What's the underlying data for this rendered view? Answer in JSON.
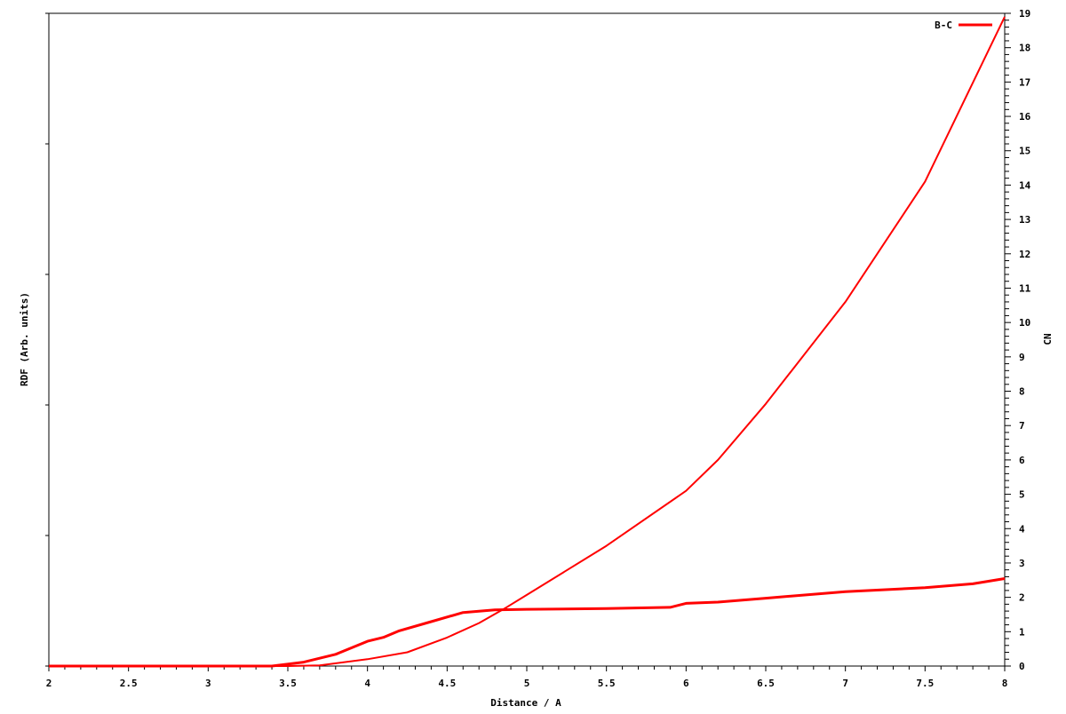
{
  "chart_data": {
    "type": "line",
    "title": "",
    "xlabel": "Distance / A",
    "ylabel_left": "RDF (Arb. units)",
    "ylabel_right": "CN",
    "xlim": [
      2,
      8
    ],
    "ylim_left": [
      0,
      5
    ],
    "ylim_right": [
      0,
      19
    ],
    "x_ticks": [
      "2",
      "2.5",
      "3",
      "3.5",
      "4",
      "4.5",
      "5",
      "5.5",
      "6",
      "6.5",
      "7",
      "7.5",
      "8"
    ],
    "right_ticks": [
      "0",
      "1",
      "2",
      "3",
      "4",
      "5",
      "6",
      "7",
      "8",
      "9",
      "10",
      "11",
      "12",
      "13",
      "14",
      "15",
      "16",
      "17",
      "18",
      "19"
    ],
    "left_ticks_labeled": false,
    "grid": false,
    "legend_position": "top-right",
    "series": [
      {
        "name": "B-C",
        "axis": "left",
        "color": "#ff0000",
        "x": [
          2,
          3.4,
          3.6,
          3.8,
          4.0,
          4.1,
          4.2,
          4.4,
          4.6,
          4.8,
          5.0,
          5.5,
          5.9,
          6.0,
          6.2,
          6.5,
          7.0,
          7.5,
          7.8,
          8.0
        ],
        "y": [
          0,
          0,
          0.03,
          0.09,
          0.19,
          0.22,
          0.27,
          0.34,
          0.41,
          0.43,
          0.435,
          0.44,
          0.45,
          0.48,
          0.49,
          0.52,
          0.57,
          0.6,
          0.63,
          0.67
        ]
      },
      {
        "axis": "right",
        "color": "#ff0000",
        "x": [
          2,
          3.5,
          3.7,
          4.0,
          4.25,
          4.5,
          4.7,
          4.87,
          5.0,
          5.5,
          6.0,
          6.2,
          6.5,
          7.0,
          7.5,
          8.0
        ],
        "y": [
          0,
          0,
          0.02,
          0.2,
          0.4,
          0.83,
          1.25,
          1.7,
          2.07,
          3.5,
          5.1,
          6.0,
          7.63,
          10.6,
          14.1,
          18.9
        ]
      }
    ]
  }
}
